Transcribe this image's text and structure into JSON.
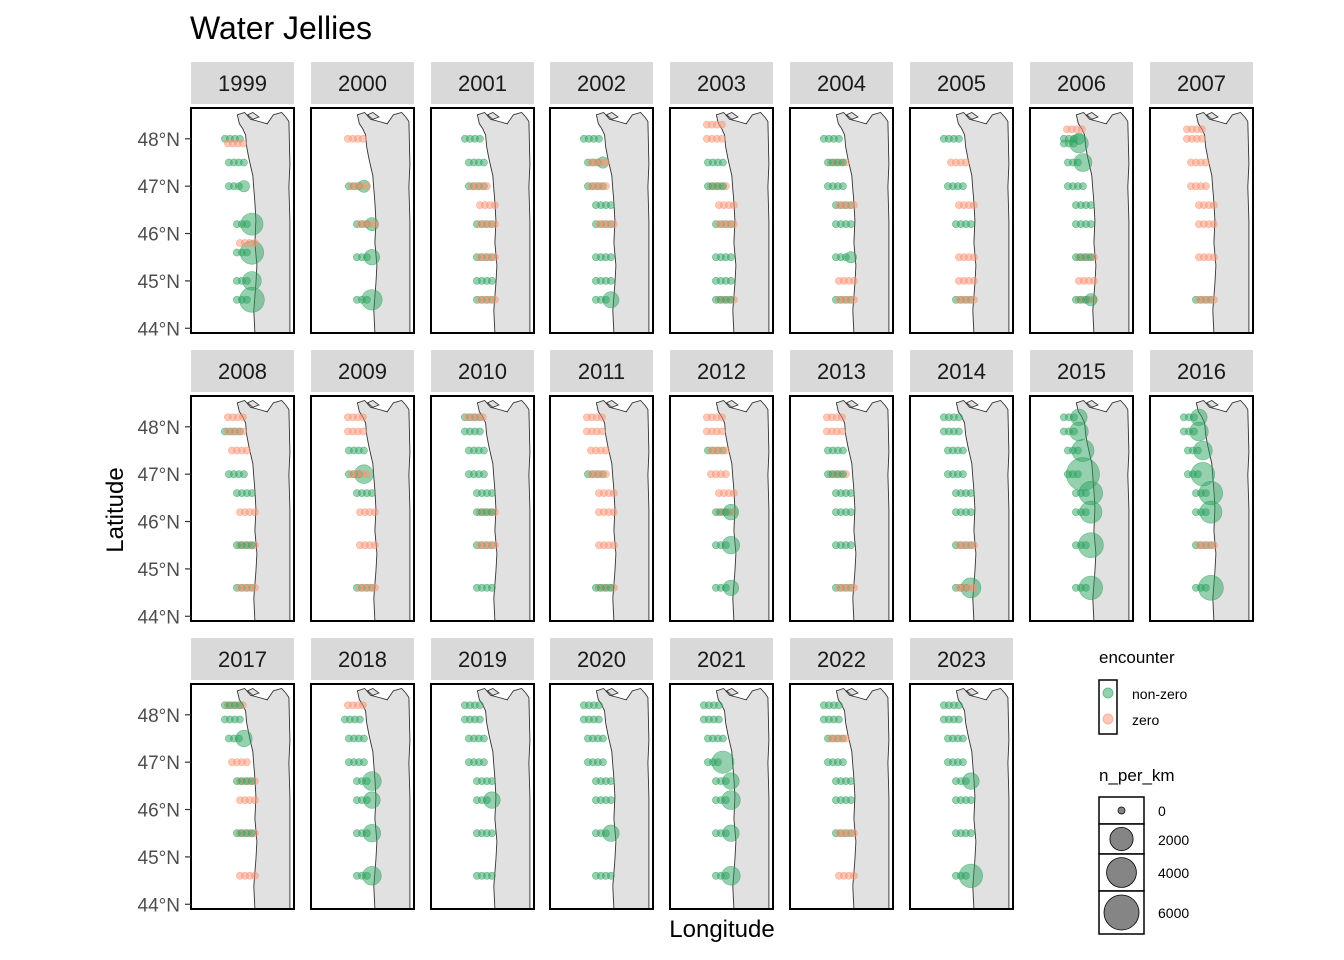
{
  "chart_data": {
    "type": "scatter",
    "title": "Water Jellies",
    "xlabel": "Longitude",
    "ylabel": "Latitude",
    "ylim": [
      43.9,
      48.65
    ],
    "y_ticks": [
      {
        "value": 48,
        "label": "48°N"
      },
      {
        "value": 47,
        "label": "47°N"
      },
      {
        "value": 46,
        "label": "46°N"
      },
      {
        "value": 45,
        "label": "45°N"
      },
      {
        "value": 44,
        "label": "44°N"
      }
    ],
    "panels": [
      "1999",
      "2000",
      "2001",
      "2002",
      "2003",
      "2004",
      "2005",
      "2006",
      "2007",
      "2008",
      "2009",
      "2010",
      "2011",
      "2012",
      "2013",
      "2014",
      "2015",
      "2016",
      "2017",
      "2018",
      "2019",
      "2020",
      "2021",
      "2022",
      "2023"
    ],
    "encounter_colors": {
      "non-zero": "#2ca25f",
      "zero": "#fc9272"
    },
    "legend": {
      "encounter_title": "encounter",
      "encounter_items": [
        "non-zero",
        "zero"
      ],
      "size_title": "n_per_km",
      "size_items": [
        0,
        2000,
        4000,
        6000
      ],
      "size_labels": [
        "0",
        "2000",
        "4000",
        "6000"
      ]
    },
    "points": [
      [
        "1999",
        48.0,
        0,
        0
      ],
      [
        "1999",
        47.5,
        0,
        0
      ],
      [
        "1999",
        47.0,
        0,
        200
      ],
      [
        "1999",
        46.2,
        0,
        2500
      ],
      [
        "1999",
        45.6,
        0,
        3000
      ],
      [
        "1999",
        45.0,
        0,
        1500
      ],
      [
        "1999",
        44.6,
        0,
        3500
      ],
      [
        "1999",
        47.9,
        1,
        0
      ],
      [
        "1999",
        45.8,
        1,
        0
      ],
      [
        "2000",
        48.0,
        1,
        0
      ],
      [
        "2000",
        47.0,
        0,
        300
      ],
      [
        "2000",
        46.2,
        0,
        400
      ],
      [
        "2000",
        45.5,
        0,
        800
      ],
      [
        "2000",
        44.6,
        0,
        2000
      ],
      [
        "2000",
        47.0,
        1,
        0
      ],
      [
        "2000",
        46.2,
        1,
        0
      ],
      [
        "2001",
        48.0,
        0,
        0
      ],
      [
        "2001",
        47.5,
        0,
        0
      ],
      [
        "2001",
        47.0,
        0,
        0
      ],
      [
        "2001",
        46.6,
        1,
        0
      ],
      [
        "2001",
        46.2,
        0,
        0
      ],
      [
        "2001",
        45.5,
        0,
        0
      ],
      [
        "2001",
        45.0,
        0,
        0
      ],
      [
        "2001",
        44.6,
        0,
        0
      ],
      [
        "2001",
        47.0,
        1,
        0
      ],
      [
        "2001",
        46.2,
        1,
        0
      ],
      [
        "2001",
        45.5,
        1,
        0
      ],
      [
        "2001",
        44.6,
        1,
        0
      ],
      [
        "2002",
        48.0,
        0,
        0
      ],
      [
        "2002",
        47.5,
        0,
        200
      ],
      [
        "2002",
        47.0,
        0,
        0
      ],
      [
        "2002",
        46.6,
        0,
        0
      ],
      [
        "2002",
        46.2,
        0,
        0
      ],
      [
        "2002",
        45.5,
        0,
        0
      ],
      [
        "2002",
        45.0,
        0,
        0
      ],
      [
        "2002",
        44.6,
        0,
        900
      ],
      [
        "2002",
        47.5,
        1,
        0
      ],
      [
        "2002",
        47.0,
        1,
        0
      ],
      [
        "2002",
        46.2,
        1,
        0
      ],
      [
        "2003",
        48.3,
        1,
        0
      ],
      [
        "2003",
        48.0,
        1,
        0
      ],
      [
        "2003",
        47.5,
        0,
        0
      ],
      [
        "2003",
        47.0,
        1,
        0
      ],
      [
        "2003",
        46.6,
        1,
        0
      ],
      [
        "2003",
        46.2,
        0,
        0
      ],
      [
        "2003",
        45.5,
        0,
        0
      ],
      [
        "2003",
        45.0,
        0,
        0
      ],
      [
        "2003",
        44.6,
        1,
        0
      ],
      [
        "2003",
        47.0,
        0,
        0
      ],
      [
        "2003",
        46.2,
        1,
        0
      ],
      [
        "2003",
        44.6,
        0,
        0
      ],
      [
        "2004",
        48.0,
        0,
        0
      ],
      [
        "2004",
        47.5,
        1,
        0
      ],
      [
        "2004",
        47.0,
        0,
        0
      ],
      [
        "2004",
        46.6,
        0,
        0
      ],
      [
        "2004",
        46.2,
        0,
        0
      ],
      [
        "2004",
        45.5,
        0,
        200
      ],
      [
        "2004",
        45.0,
        1,
        0
      ],
      [
        "2004",
        44.6,
        0,
        0
      ],
      [
        "2004",
        47.5,
        0,
        0
      ],
      [
        "2004",
        46.6,
        1,
        0
      ],
      [
        "2004",
        44.6,
        1,
        0
      ],
      [
        "2005",
        48.0,
        0,
        0
      ],
      [
        "2005",
        47.5,
        1,
        0
      ],
      [
        "2005",
        47.0,
        0,
        0
      ],
      [
        "2005",
        46.6,
        1,
        0
      ],
      [
        "2005",
        46.2,
        0,
        0
      ],
      [
        "2005",
        45.5,
        1,
        0
      ],
      [
        "2005",
        45.0,
        1,
        0
      ],
      [
        "2005",
        44.6,
        0,
        0
      ],
      [
        "2005",
        44.6,
        1,
        0
      ],
      [
        "2006",
        48.2,
        1,
        0
      ],
      [
        "2006",
        48.0,
        0,
        200
      ],
      [
        "2006",
        47.9,
        0,
        1500
      ],
      [
        "2006",
        47.5,
        0,
        1300
      ],
      [
        "2006",
        47.0,
        0,
        0
      ],
      [
        "2006",
        46.6,
        0,
        0
      ],
      [
        "2006",
        46.2,
        0,
        0
      ],
      [
        "2006",
        45.5,
        1,
        0
      ],
      [
        "2006",
        45.0,
        1,
        0
      ],
      [
        "2006",
        44.6,
        1,
        0
      ],
      [
        "2006",
        45.5,
        0,
        0
      ],
      [
        "2006",
        44.6,
        0,
        300
      ],
      [
        "2007",
        48.2,
        1,
        0
      ],
      [
        "2007",
        48.0,
        1,
        0
      ],
      [
        "2007",
        47.5,
        1,
        0
      ],
      [
        "2007",
        47.0,
        1,
        0
      ],
      [
        "2007",
        46.6,
        1,
        0
      ],
      [
        "2007",
        46.2,
        1,
        0
      ],
      [
        "2007",
        45.5,
        1,
        0
      ],
      [
        "2007",
        44.6,
        0,
        0
      ],
      [
        "2007",
        44.6,
        1,
        0
      ],
      [
        "2008",
        48.2,
        1,
        0
      ],
      [
        "2008",
        47.9,
        0,
        0
      ],
      [
        "2008",
        47.5,
        1,
        0
      ],
      [
        "2008",
        47.0,
        0,
        0
      ],
      [
        "2008",
        46.6,
        0,
        0
      ],
      [
        "2008",
        46.2,
        1,
        0
      ],
      [
        "2008",
        45.5,
        1,
        0
      ],
      [
        "2008",
        44.6,
        0,
        0
      ],
      [
        "2008",
        44.6,
        1,
        0
      ],
      [
        "2008",
        47.9,
        1,
        0
      ],
      [
        "2008",
        45.5,
        0,
        0
      ],
      [
        "2009",
        48.2,
        1,
        0
      ],
      [
        "2009",
        47.9,
        1,
        0
      ],
      [
        "2009",
        47.5,
        0,
        0
      ],
      [
        "2009",
        47.0,
        0,
        1500
      ],
      [
        "2009",
        46.6,
        0,
        0
      ],
      [
        "2009",
        46.2,
        1,
        0
      ],
      [
        "2009",
        45.5,
        1,
        0
      ],
      [
        "2009",
        44.6,
        0,
        0
      ],
      [
        "2009",
        44.6,
        1,
        0
      ],
      [
        "2009",
        47.0,
        1,
        0
      ],
      [
        "2010",
        48.2,
        0,
        0
      ],
      [
        "2010",
        47.9,
        0,
        0
      ],
      [
        "2010",
        47.5,
        0,
        0
      ],
      [
        "2010",
        47.0,
        0,
        0
      ],
      [
        "2010",
        46.6,
        0,
        0
      ],
      [
        "2010",
        46.2,
        1,
        0
      ],
      [
        "2010",
        45.5,
        0,
        0
      ],
      [
        "2010",
        44.6,
        0,
        0
      ],
      [
        "2010",
        48.2,
        1,
        0
      ],
      [
        "2010",
        46.2,
        0,
        0
      ],
      [
        "2010",
        45.5,
        1,
        0
      ],
      [
        "2011",
        48.2,
        1,
        0
      ],
      [
        "2011",
        47.9,
        1,
        0
      ],
      [
        "2011",
        47.5,
        1,
        0
      ],
      [
        "2011",
        47.0,
        0,
        0
      ],
      [
        "2011",
        46.6,
        1,
        0
      ],
      [
        "2011",
        46.2,
        1,
        0
      ],
      [
        "2011",
        45.5,
        1,
        0
      ],
      [
        "2011",
        44.6,
        1,
        0
      ],
      [
        "2011",
        47.0,
        1,
        0
      ],
      [
        "2011",
        44.6,
        0,
        0
      ],
      [
        "2012",
        48.2,
        1,
        0
      ],
      [
        "2012",
        47.9,
        1,
        0
      ],
      [
        "2012",
        47.5,
        0,
        0
      ],
      [
        "2012",
        47.0,
        1,
        0
      ],
      [
        "2012",
        46.6,
        1,
        0
      ],
      [
        "2012",
        46.2,
        1,
        0
      ],
      [
        "2012",
        45.5,
        0,
        1200
      ],
      [
        "2012",
        44.6,
        0,
        800
      ],
      [
        "2012",
        46.2,
        0,
        800
      ],
      [
        "2012",
        47.5,
        1,
        0
      ],
      [
        "2013",
        48.2,
        1,
        0
      ],
      [
        "2013",
        47.9,
        1,
        0
      ],
      [
        "2013",
        47.5,
        0,
        0
      ],
      [
        "2013",
        47.0,
        1,
        0
      ],
      [
        "2013",
        46.6,
        0,
        0
      ],
      [
        "2013",
        46.2,
        0,
        0
      ],
      [
        "2013",
        45.5,
        0,
        0
      ],
      [
        "2013",
        44.6,
        0,
        0
      ],
      [
        "2013",
        47.0,
        0,
        0
      ],
      [
        "2013",
        44.6,
        1,
        0
      ],
      [
        "2014",
        48.2,
        0,
        0
      ],
      [
        "2014",
        47.9,
        0,
        0
      ],
      [
        "2014",
        47.5,
        0,
        0
      ],
      [
        "2014",
        47.0,
        0,
        0
      ],
      [
        "2014",
        46.6,
        0,
        0
      ],
      [
        "2014",
        46.2,
        0,
        0
      ],
      [
        "2014",
        45.5,
        0,
        0
      ],
      [
        "2014",
        44.6,
        0,
        1800
      ],
      [
        "2014",
        45.5,
        1,
        0
      ],
      [
        "2014",
        44.6,
        1,
        0
      ],
      [
        "2015",
        48.2,
        0,
        1000
      ],
      [
        "2015",
        47.9,
        0,
        1500
      ],
      [
        "2015",
        47.5,
        0,
        2500
      ],
      [
        "2015",
        47.0,
        0,
        7500
      ],
      [
        "2015",
        46.6,
        0,
        3000
      ],
      [
        "2015",
        46.2,
        0,
        2500
      ],
      [
        "2015",
        45.5,
        0,
        3500
      ],
      [
        "2015",
        44.6,
        0,
        3000
      ],
      [
        "2016",
        48.2,
        0,
        1000
      ],
      [
        "2016",
        47.9,
        0,
        1500
      ],
      [
        "2016",
        47.5,
        0,
        1500
      ],
      [
        "2016",
        47.0,
        0,
        3000
      ],
      [
        "2016",
        46.6,
        0,
        3000
      ],
      [
        "2016",
        46.2,
        0,
        2500
      ],
      [
        "2016",
        45.5,
        0,
        0
      ],
      [
        "2016",
        44.6,
        0,
        3500
      ],
      [
        "2016",
        45.5,
        1,
        0
      ],
      [
        "2017",
        48.2,
        1,
        0
      ],
      [
        "2017",
        48.2,
        0,
        0
      ],
      [
        "2017",
        47.9,
        0,
        0
      ],
      [
        "2017",
        47.5,
        0,
        1000
      ],
      [
        "2017",
        47.0,
        1,
        0
      ],
      [
        "2017",
        46.6,
        1,
        0
      ],
      [
        "2017",
        46.2,
        1,
        0
      ],
      [
        "2017",
        45.5,
        1,
        0
      ],
      [
        "2017",
        44.6,
        1,
        0
      ],
      [
        "2017",
        46.6,
        0,
        0
      ],
      [
        "2017",
        45.5,
        0,
        0
      ],
      [
        "2018",
        48.2,
        1,
        0
      ],
      [
        "2018",
        47.9,
        0,
        0
      ],
      [
        "2018",
        47.5,
        0,
        0
      ],
      [
        "2018",
        47.0,
        0,
        0
      ],
      [
        "2018",
        46.6,
        0,
        1500
      ],
      [
        "2018",
        46.2,
        0,
        1000
      ],
      [
        "2018",
        45.5,
        0,
        1200
      ],
      [
        "2018",
        44.6,
        0,
        1500
      ],
      [
        "2019",
        48.2,
        0,
        0
      ],
      [
        "2019",
        47.9,
        0,
        0
      ],
      [
        "2019",
        47.5,
        0,
        0
      ],
      [
        "2019",
        47.0,
        0,
        0
      ],
      [
        "2019",
        46.6,
        0,
        0
      ],
      [
        "2019",
        46.2,
        0,
        1000
      ],
      [
        "2019",
        45.5,
        0,
        0
      ],
      [
        "2019",
        44.6,
        0,
        0
      ],
      [
        "2020",
        48.2,
        0,
        0
      ],
      [
        "2020",
        47.9,
        0,
        0
      ],
      [
        "2020",
        47.5,
        0,
        0
      ],
      [
        "2020",
        47.0,
        0,
        0
      ],
      [
        "2020",
        46.6,
        0,
        0
      ],
      [
        "2020",
        46.2,
        0,
        0
      ],
      [
        "2020",
        45.5,
        0,
        1000
      ],
      [
        "2020",
        44.6,
        0,
        0
      ],
      [
        "2021",
        48.2,
        0,
        0
      ],
      [
        "2021",
        47.9,
        0,
        0
      ],
      [
        "2021",
        47.5,
        0,
        0
      ],
      [
        "2021",
        47.0,
        0,
        2500
      ],
      [
        "2021",
        46.6,
        0,
        1000
      ],
      [
        "2021",
        46.2,
        0,
        1500
      ],
      [
        "2021",
        45.5,
        0,
        1000
      ],
      [
        "2021",
        44.6,
        0,
        1500
      ],
      [
        "2022",
        48.2,
        0,
        0
      ],
      [
        "2022",
        47.9,
        0,
        0
      ],
      [
        "2022",
        47.5,
        0,
        0
      ],
      [
        "2022",
        47.0,
        0,
        0
      ],
      [
        "2022",
        46.6,
        0,
        0
      ],
      [
        "2022",
        46.2,
        0,
        0
      ],
      [
        "2022",
        45.5,
        0,
        0
      ],
      [
        "2022",
        44.6,
        1,
        0
      ],
      [
        "2022",
        47.5,
        1,
        0
      ],
      [
        "2022",
        45.5,
        1,
        0
      ],
      [
        "2023",
        48.2,
        0,
        0
      ],
      [
        "2023",
        47.9,
        0,
        0
      ],
      [
        "2023",
        47.5,
        0,
        0
      ],
      [
        "2023",
        47.0,
        0,
        0
      ],
      [
        "2023",
        46.6,
        0,
        1000
      ],
      [
        "2023",
        46.2,
        0,
        0
      ],
      [
        "2023",
        45.5,
        0,
        0
      ],
      [
        "2023",
        44.6,
        0,
        3000
      ]
    ],
    "points_columns": [
      "year",
      "latitude",
      "encounter (0 = non-zero, 1 = zero)",
      "n_per_km"
    ]
  }
}
